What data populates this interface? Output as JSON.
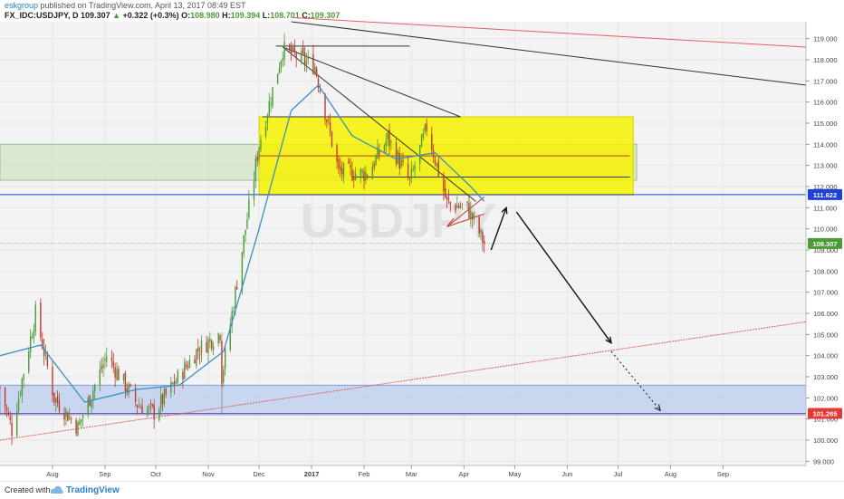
{
  "header": {
    "author": "eskgroup",
    "published_text": "published on TradingView.com, April 13, 2017 08:49 EST",
    "symbol": "FX_IDC:USDJPY, D",
    "last": "109.307",
    "change": "+0.322 (+0.3%)",
    "open_label": "O:",
    "open": "108.980",
    "high_label": "H:",
    "high": "109.394",
    "low_label": "L:",
    "low": "108.701",
    "close_label": "C:",
    "close": "109.307"
  },
  "footer": {
    "created_with": "Created with",
    "brand": "TradingView"
  },
  "colors": {
    "up": "#4c9b37",
    "down": "#c0392b",
    "ma": "#3b8fc4",
    "zone_yellow": "#f6f200",
    "zone_green": "#cfe3c2",
    "zone_blue": "#b9cdee",
    "price_line_blue": "#1f3fdc",
    "badge_red": "#e53935"
  },
  "chart_data": {
    "type": "candlestick",
    "title": "",
    "xlabel": "",
    "ylabel": "",
    "watermark": "USDJPY",
    "ylim": [
      98.8,
      119.8
    ],
    "y_ticks": [
      "99.000",
      "100.000",
      "101.000",
      "102.000",
      "103.000",
      "104.000",
      "105.000",
      "106.000",
      "107.000",
      "108.000",
      "109.000",
      "110.000",
      "111.000",
      "112.000",
      "113.000",
      "114.000",
      "115.000",
      "116.000",
      "117.000",
      "118.000",
      "119.000"
    ],
    "x_ticks": [
      "Aug",
      "Sep",
      "Oct",
      "Nov",
      "Dec",
      "2017",
      "Feb",
      "Mar",
      "Apr",
      "May",
      "Jun",
      "Jul",
      "Aug",
      "Sep"
    ],
    "price_badges": [
      {
        "label": "111.622",
        "value": 111.622,
        "color": "#1f3fdc"
      },
      {
        "label": "109.307",
        "value": 109.307,
        "color": "#4c9b37"
      },
      {
        "label": "101.265",
        "value": 101.265,
        "color": "#e53935"
      }
    ],
    "series": [
      {
        "name": "",
        "type": "candles",
        "x_start": "2016-07-01",
        "x_end": "2017-04-13",
        "anchors_close": [
          {
            "date": "2016-07-01",
            "close": 102.5
          },
          {
            "date": "2016-07-08",
            "close": 100.5
          },
          {
            "date": "2016-07-22",
            "close": 106.0
          },
          {
            "date": "2016-08-02",
            "close": 102.0
          },
          {
            "date": "2016-08-16",
            "close": 100.6
          },
          {
            "date": "2016-09-02",
            "close": 104.0
          },
          {
            "date": "2016-09-20",
            "close": 101.7
          },
          {
            "date": "2016-09-30",
            "close": 101.3
          },
          {
            "date": "2016-10-25",
            "close": 104.2
          },
          {
            "date": "2016-11-08",
            "close": 105.1
          },
          {
            "date": "2016-11-09",
            "close": 103.0
          },
          {
            "date": "2016-12-01",
            "close": 114.0
          },
          {
            "date": "2016-12-15",
            "close": 118.5
          },
          {
            "date": "2017-01-03",
            "close": 117.7
          },
          {
            "date": "2017-01-17",
            "close": 112.7
          },
          {
            "date": "2017-02-03",
            "close": 112.6
          },
          {
            "date": "2017-02-15",
            "close": 114.3
          },
          {
            "date": "2017-02-28",
            "close": 112.2
          },
          {
            "date": "2017-03-10",
            "close": 114.8
          },
          {
            "date": "2017-03-22",
            "close": 111.2
          },
          {
            "date": "2017-04-03",
            "close": 111.0
          },
          {
            "date": "2017-04-13",
            "close": 109.3
          }
        ]
      },
      {
        "name": "",
        "type": "moving_average",
        "points": [
          {
            "date": "2016-07-01",
            "value": 104.0
          },
          {
            "date": "2016-07-25",
            "value": 104.5
          },
          {
            "date": "2016-08-20",
            "value": 101.8
          },
          {
            "date": "2016-09-20",
            "value": 102.4
          },
          {
            "date": "2016-10-15",
            "value": 102.6
          },
          {
            "date": "2016-11-10",
            "value": 104.2
          },
          {
            "date": "2016-12-01",
            "value": 110.0
          },
          {
            "date": "2016-12-20",
            "value": 115.6
          },
          {
            "date": "2017-01-05",
            "value": 116.8
          },
          {
            "date": "2017-01-25",
            "value": 114.4
          },
          {
            "date": "2017-02-20",
            "value": 113.3
          },
          {
            "date": "2017-03-15",
            "value": 113.6
          },
          {
            "date": "2017-04-05",
            "value": 112.0
          },
          {
            "date": "2017-04-13",
            "value": 111.3
          }
        ]
      }
    ],
    "zones": [
      {
        "name": "",
        "color": "yellow",
        "x_start": "2016-12-01",
        "x_end": "2017-07-10",
        "y_top": 115.3,
        "y_bottom": 111.6
      },
      {
        "name": "",
        "color": "green",
        "x_start": "2016-07-01",
        "x_end": "2017-07-12",
        "y_top": 114.0,
        "y_bottom": 112.3
      },
      {
        "name": "",
        "color": "blue",
        "x_start": "2016-07-01",
        "x_end": "2017-10-20",
        "y_top": 102.6,
        "y_bottom": 101.2
      }
    ],
    "horizontal_lines": [
      111.622,
      109.307,
      101.265
    ],
    "annotations": [
      {
        "type": "arrow",
        "from": {
          "date": "2017-04-17",
          "value": 109.0
        },
        "to": {
          "date": "2017-04-26",
          "value": 111.0
        }
      },
      {
        "type": "arrow",
        "from": {
          "date": "2017-05-02",
          "value": 110.8
        },
        "to": {
          "date": "2017-06-27",
          "value": 104.6
        }
      },
      {
        "type": "dotted_arrow",
        "from": {
          "date": "2017-06-27",
          "value": 104.2
        },
        "to": {
          "date": "2017-07-26",
          "value": 101.4
        }
      },
      {
        "type": "trendline",
        "from": {
          "date": "2016-12-15",
          "value": 118.6
        },
        "to": {
          "date": "2017-04-08",
          "value": 111.3
        }
      },
      {
        "type": "trendline",
        "from": {
          "date": "2016-12-15",
          "value": 118.6
        },
        "to": {
          "date": "2017-03-30",
          "value": 115.3
        }
      },
      {
        "type": "trendline",
        "from": {
          "date": "2016-12-20",
          "value": 119.8
        },
        "to": {
          "date": "2017-10-20",
          "value": 116.8
        }
      },
      {
        "type": "trendline_red",
        "from": {
          "date": "2016-12-20",
          "value": 120.0
        },
        "to": {
          "date": "2017-10-20",
          "value": 118.6
        }
      },
      {
        "type": "trendline_red",
        "from": {
          "date": "2016-07-01",
          "value": 100.0
        },
        "to": {
          "date": "2017-10-20",
          "value": 105.6
        }
      }
    ]
  }
}
